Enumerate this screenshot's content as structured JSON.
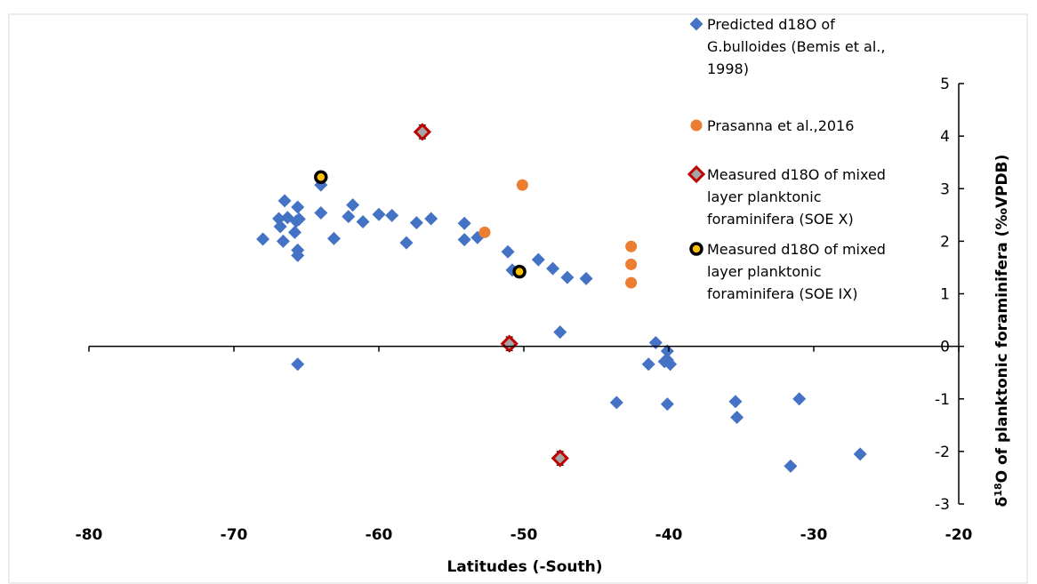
{
  "chart_data": {
    "type": "scatter",
    "xlabel": "Latitudes (-South)",
    "ylabel": "δ18O of planktonic foraminifera (‰VPDB)",
    "ylabel_parts": {
      "prefix": "δ",
      "sup": "18",
      "suffix": "O of planktonic foraminifera (‰VPDB)"
    },
    "xlim": [
      -80,
      -20
    ],
    "ylim": [
      -3,
      5
    ],
    "x_ticks": [
      "-80",
      "-70",
      "-60",
      "-50",
      "-40",
      "-30",
      "-20"
    ],
    "y_ticks": [
      "-3",
      "-2",
      "-1",
      "0",
      "1",
      "2",
      "3",
      "4",
      "5"
    ],
    "grid": false,
    "legend_position": "right",
    "series": [
      {
        "name": "Predicted d18O of G.bulloides (Bemis et al., 1998)",
        "legend_lines": [
          "Predicted d18O of",
          "G.bulloides (Bemis et al.,",
          "1998)"
        ],
        "marker": "diamond",
        "color": "#4472C4",
        "points": [
          [
            -68,
            2.04
          ],
          [
            -66.9,
            2.43
          ],
          [
            -66.8,
            2.28
          ],
          [
            -66.6,
            2.0
          ],
          [
            -66.5,
            2.77
          ],
          [
            -66.3,
            2.45
          ],
          [
            -65.8,
            2.17
          ],
          [
            -65.7,
            2.38
          ],
          [
            -65.6,
            2.65
          ],
          [
            -65.6,
            1.83
          ],
          [
            -65.6,
            1.73
          ],
          [
            -65.5,
            2.42
          ],
          [
            -65.6,
            -0.34
          ],
          [
            -64,
            3.07
          ],
          [
            -64,
            2.54
          ],
          [
            -63.1,
            2.05
          ],
          [
            -62.1,
            2.47
          ],
          [
            -61.8,
            2.69
          ],
          [
            -61.1,
            2.37
          ],
          [
            -60,
            2.51
          ],
          [
            -59.1,
            2.49
          ],
          [
            -58.1,
            1.97
          ],
          [
            -57.4,
            2.35
          ],
          [
            -56.4,
            2.43
          ],
          [
            -54.1,
            2.34
          ],
          [
            -54.1,
            2.03
          ],
          [
            -53.2,
            2.07
          ],
          [
            -51.1,
            1.8
          ],
          [
            -50.8,
            1.45
          ],
          [
            -49,
            1.65
          ],
          [
            -48,
            1.48
          ],
          [
            -47,
            1.31
          ],
          [
            -47.5,
            0.27
          ],
          [
            -45.7,
            1.29
          ],
          [
            -43.6,
            -1.07
          ],
          [
            -41.4,
            -0.34
          ],
          [
            -40.9,
            0.07
          ],
          [
            -40.3,
            -0.29
          ],
          [
            -40.1,
            -0.09
          ],
          [
            -40.1,
            -0.26
          ],
          [
            -39.9,
            -0.34
          ],
          [
            -40.1,
            -1.1
          ],
          [
            -35.4,
            -1.05
          ],
          [
            -35.3,
            -1.35
          ],
          [
            -31.6,
            -2.28
          ],
          [
            -31,
            -1.0
          ],
          [
            -26.8,
            -2.05
          ]
        ]
      },
      {
        "name": "Prasanna et al.,2016",
        "legend_lines": [
          "Prasanna et al.,2016"
        ],
        "marker": "circle",
        "color": "#ED7D31",
        "points": [
          [
            -52.7,
            2.17
          ],
          [
            -50.1,
            3.07
          ],
          [
            -42.6,
            1.9
          ],
          [
            -42.6,
            1.56
          ],
          [
            -42.6,
            1.21
          ]
        ]
      },
      {
        "name": "Measured d18O of mixed layer planktonic foraminifera (SOE X)",
        "legend_lines": [
          "Measured d18O of mixed",
          "layer planktonic",
          "foraminifera (SOE X)"
        ],
        "marker": "diamond-open",
        "color": "#C00000",
        "fill": "#A5A5A5",
        "error_bar": 0.13,
        "points": [
          [
            -57.0,
            4.08
          ],
          [
            -51.0,
            0.05
          ],
          [
            -47.5,
            -2.13
          ]
        ]
      },
      {
        "name": "Measured d18O of mixed layer planktonic foraminifera (SOE IX)",
        "legend_lines": [
          "Measured d18O of mixed",
          "layer planktonic",
          "foraminifera (SOE IX)"
        ],
        "marker": "circle-ringed",
        "color": "#FFC000",
        "edge": "#000000",
        "points": [
          [
            -64.0,
            3.22
          ],
          [
            -50.3,
            1.42
          ]
        ]
      }
    ]
  }
}
